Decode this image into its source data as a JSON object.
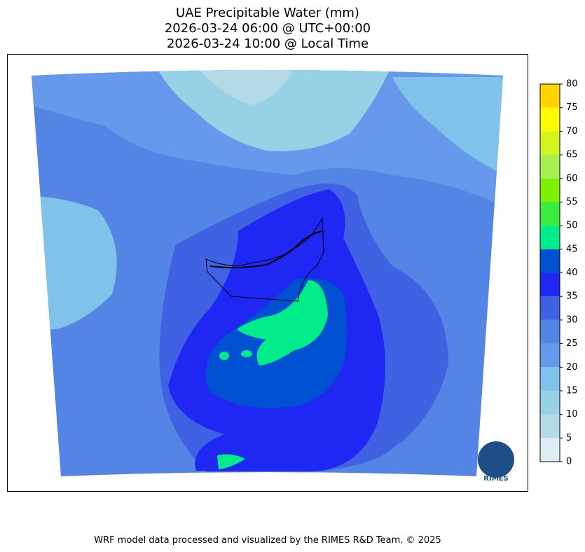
{
  "title": [
    "UAE Precipitable Water (mm)",
    "2026-03-24 06:00 @ UTC+00:00",
    "2026-03-24 10:00 @ Local Time"
  ],
  "colorbar": {
    "range": [
      0,
      80
    ],
    "ticks": [
      0,
      5,
      10,
      15,
      20,
      25,
      30,
      35,
      40,
      45,
      50,
      55,
      60,
      65,
      70,
      75,
      80
    ],
    "colors": [
      "#deedf4",
      "#b3dae6",
      "#96d1e6",
      "#80c2ea",
      "#6699ec",
      "#5585e4",
      "#3e62e2",
      "#1f28f2",
      "#0050d2",
      "#00ec8a",
      "#3cec3c",
      "#7cf000",
      "#a6f050",
      "#d4f41e",
      "#fffb00",
      "#ffd400"
    ]
  },
  "logo": {
    "text": "RIMES"
  },
  "footer": "WRF model data processed and visualized by the RIMES R&D Team. © 2025"
}
